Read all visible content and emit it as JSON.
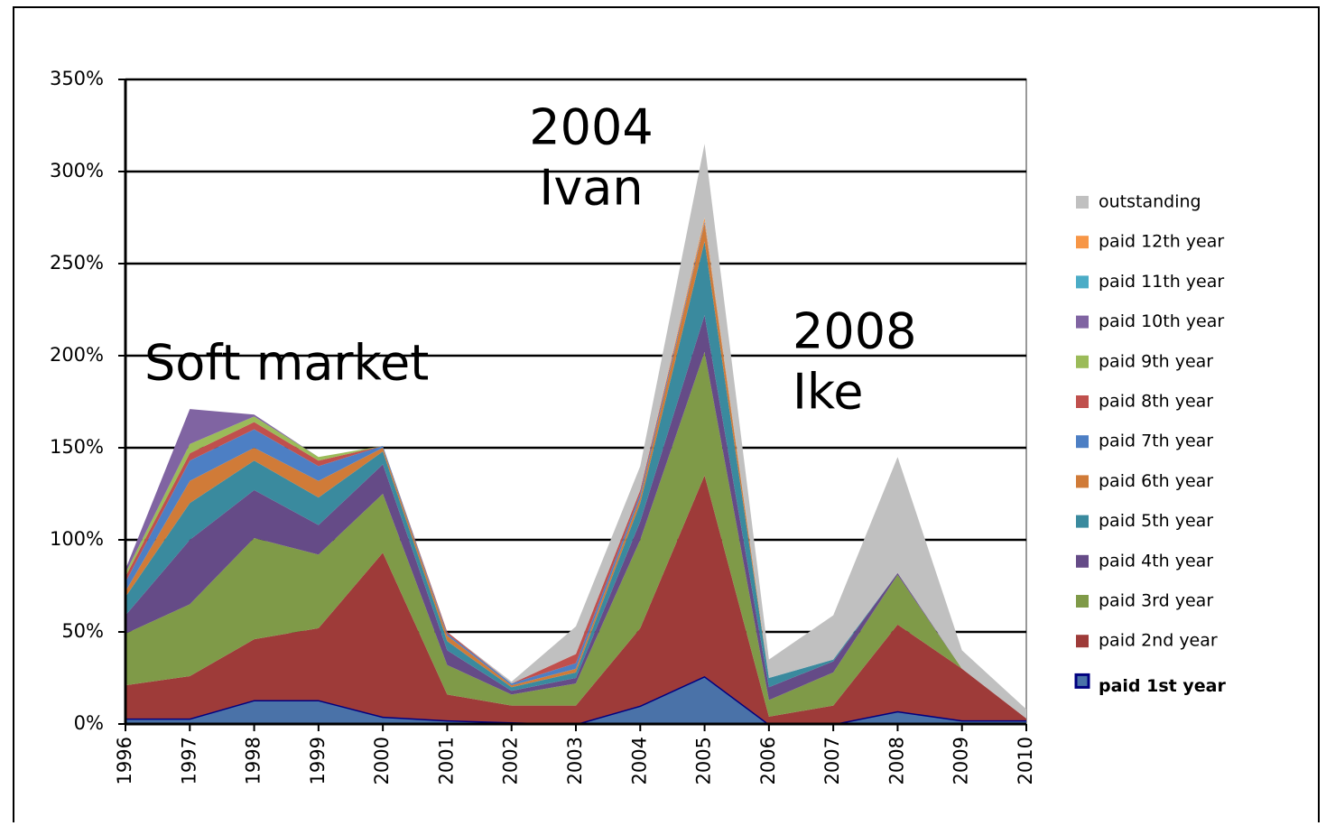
{
  "chart_data": {
    "type": "stacked-area",
    "categories": [
      "1996",
      "1997",
      "1998",
      "1999",
      "2000",
      "2001",
      "2002",
      "2003",
      "2004",
      "2005",
      "2006",
      "2007",
      "2008",
      "2009",
      "2010"
    ],
    "ylim": [
      0,
      350
    ],
    "yticks": [
      {
        "value": 0,
        "label": "0%"
      },
      {
        "value": 50,
        "label": "50%"
      },
      {
        "value": 100,
        "label": "100%"
      },
      {
        "value": 150,
        "label": "150%"
      },
      {
        "value": 200,
        "label": "200%"
      },
      {
        "value": 250,
        "label": "250%"
      },
      {
        "value": 300,
        "label": "300%"
      },
      {
        "value": 350,
        "label": "350%"
      }
    ],
    "grid": true,
    "legend": "right",
    "annotations": [
      {
        "text": [
          "Soft market"
        ]
      },
      {
        "text": [
          "2004",
          "Ivan"
        ]
      },
      {
        "text": [
          "2008",
          "Ike"
        ]
      }
    ],
    "series": [
      {
        "name": "paid 1st year",
        "color": "#4a72a8",
        "values": [
          3,
          3,
          13,
          13,
          4,
          2,
          1,
          0,
          10,
          26,
          0,
          0,
          7,
          2,
          2
        ]
      },
      {
        "name": "paid 2nd year",
        "color": "#9e3b39",
        "values": [
          18,
          23,
          33,
          39,
          89,
          14,
          9,
          10,
          42,
          109,
          4,
          10,
          47,
          28,
          1
        ]
      },
      {
        "name": "paid 3rd year",
        "color": "#7f9a48",
        "values": [
          28,
          39,
          55,
          40,
          32,
          16,
          6,
          12,
          48,
          67,
          9,
          18,
          27,
          0,
          0
        ]
      },
      {
        "name": "paid 4th year",
        "color": "#654b87",
        "values": [
          10,
          35,
          26,
          16,
          16,
          8,
          2,
          3,
          10,
          20,
          7,
          6,
          1,
          0,
          0
        ]
      },
      {
        "name": "paid 5th year",
        "color": "#3a8a9e",
        "values": [
          10,
          20,
          16,
          15,
          7,
          5,
          2,
          3,
          10,
          40,
          5,
          1,
          0,
          0,
          0
        ]
      },
      {
        "name": "paid 6th year",
        "color": "#d07b38",
        "values": [
          3,
          12,
          7,
          9,
          2,
          3,
          1,
          2,
          3,
          10,
          0,
          0,
          0,
          0,
          0
        ]
      },
      {
        "name": "paid 7th year",
        "color": "#4d7fc4",
        "values": [
          5,
          11,
          10,
          8,
          1,
          1,
          1,
          3,
          2,
          1,
          0,
          0,
          0,
          0,
          0
        ]
      },
      {
        "name": "paid 8th year",
        "color": "#c0504d",
        "values": [
          3,
          4,
          4,
          3,
          0,
          1,
          0,
          5,
          2,
          0,
          0,
          0,
          0,
          0,
          0
        ]
      },
      {
        "name": "paid 9th year",
        "color": "#9bbb59",
        "values": [
          2,
          5,
          3,
          2,
          0,
          0,
          0,
          0,
          0,
          0,
          0,
          0,
          0,
          0,
          0
        ]
      },
      {
        "name": "paid 10th year",
        "color": "#8064a2",
        "values": [
          2,
          19,
          1,
          0,
          0,
          0,
          0,
          0,
          0,
          0,
          0,
          0,
          0,
          0,
          0
        ]
      },
      {
        "name": "paid 11th year",
        "color": "#4bacc6",
        "values": [
          0,
          0,
          0,
          0,
          0,
          0,
          0,
          0,
          0,
          0,
          0,
          0,
          0,
          0,
          0
        ]
      },
      {
        "name": "paid 12th year",
        "color": "#f79646",
        "values": [
          0,
          0,
          0,
          0,
          0,
          0,
          0,
          0,
          0,
          2,
          0,
          0,
          0,
          0,
          0
        ]
      },
      {
        "name": "outstanding",
        "color": "#c0c0c0",
        "values": [
          0,
          0,
          0,
          0,
          0,
          0,
          1,
          15,
          13,
          40,
          10,
          24,
          63,
          10,
          5
        ]
      }
    ]
  }
}
